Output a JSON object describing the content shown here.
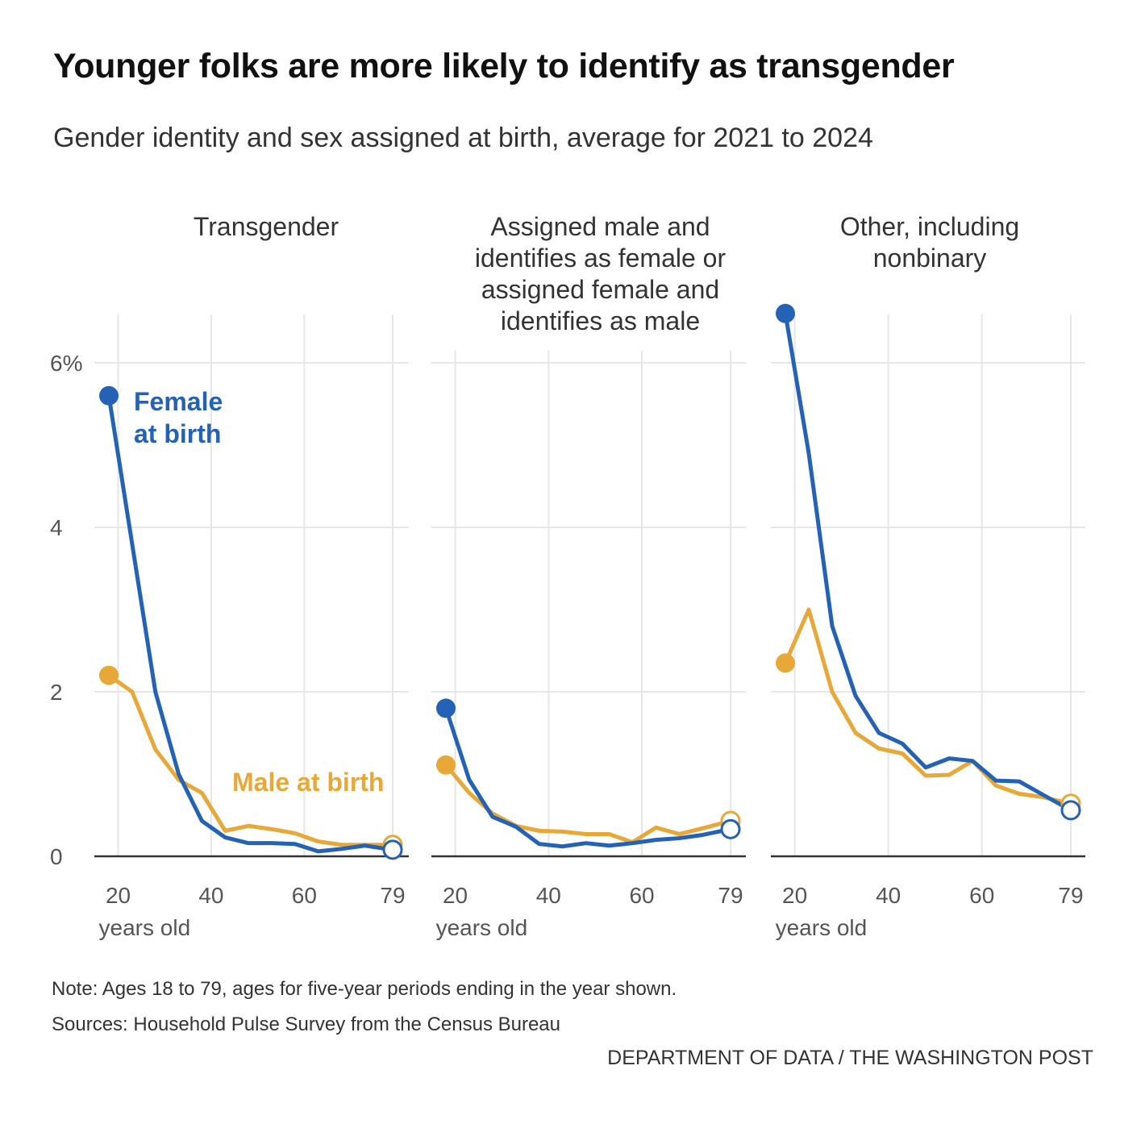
{
  "title": "Younger folks are more likely to identify as transgender",
  "subtitle": "Gender identity and sex assigned at birth, average for 2021 to 2024",
  "colors": {
    "female": "#2462b5",
    "male": "#e8a838",
    "grid": "#e6e6e6",
    "axis": "#333333"
  },
  "chart_data": {
    "type": "line",
    "x_label": "years old",
    "x_ticks": [
      "20",
      "40",
      "60",
      "79"
    ],
    "y_ticks": [
      "0",
      "2",
      "4",
      "6%"
    ],
    "ylim": [
      0,
      6.6
    ],
    "xlim": [
      18,
      79
    ],
    "series_labels": {
      "female": [
        "Female",
        "at birth"
      ],
      "male": "Male at birth"
    },
    "panels": [
      {
        "title": "Transgender",
        "series": [
          {
            "name": "Female at birth",
            "x": [
              18,
              23,
              28,
              33,
              38,
              43,
              48,
              53,
              58,
              63,
              68,
              73,
              79
            ],
            "y": [
              5.6,
              3.8,
              2.0,
              1.0,
              0.43,
              0.23,
              0.16,
              0.16,
              0.15,
              0.06,
              0.09,
              0.13,
              0.08
            ]
          },
          {
            "name": "Male at birth",
            "x": [
              18,
              23,
              28,
              33,
              38,
              43,
              48,
              53,
              58,
              63,
              68,
              73,
              79
            ],
            "y": [
              2.2,
              2.0,
              1.3,
              0.93,
              0.77,
              0.31,
              0.37,
              0.33,
              0.28,
              0.18,
              0.14,
              0.14,
              0.14
            ]
          }
        ]
      },
      {
        "title": "Assigned male and identifies as female or assigned female and identifies as male",
        "series": [
          {
            "name": "Female at birth",
            "x": [
              18,
              23,
              28,
              33,
              38,
              43,
              48,
              53,
              58,
              63,
              68,
              73,
              79
            ],
            "y": [
              1.8,
              0.93,
              0.48,
              0.36,
              0.15,
              0.12,
              0.16,
              0.13,
              0.16,
              0.2,
              0.22,
              0.26,
              0.33
            ]
          },
          {
            "name": "Male at birth",
            "x": [
              18,
              23,
              28,
              33,
              38,
              43,
              48,
              53,
              58,
              63,
              68,
              73,
              79
            ],
            "y": [
              1.11,
              0.77,
              0.52,
              0.37,
              0.31,
              0.3,
              0.27,
              0.27,
              0.17,
              0.35,
              0.27,
              0.34,
              0.43
            ]
          }
        ]
      },
      {
        "title": "Other, including nonbinary",
        "series": [
          {
            "name": "Female at birth",
            "x": [
              18,
              23,
              28,
              33,
              38,
              43,
              48,
              53,
              58,
              63,
              68,
              73,
              79
            ],
            "y": [
              6.6,
              4.9,
              2.8,
              1.95,
              1.5,
              1.37,
              1.08,
              1.19,
              1.16,
              0.92,
              0.91,
              0.75,
              0.56
            ]
          },
          {
            "name": "Male at birth",
            "x": [
              18,
              23,
              28,
              33,
              38,
              43,
              48,
              53,
              58,
              63,
              68,
              73,
              79
            ],
            "y": [
              2.35,
              3.0,
              2.0,
              1.5,
              1.31,
              1.25,
              0.98,
              0.99,
              1.16,
              0.86,
              0.76,
              0.72,
              0.64
            ]
          }
        ]
      }
    ]
  },
  "note": "Note: Ages 18 to 79, ages for five-year periods ending in the year shown.",
  "sources": "Sources:  Household Pulse Survey from the Census Bureau",
  "credit": "DEPARTMENT OF DATA / THE WASHINGTON POST"
}
